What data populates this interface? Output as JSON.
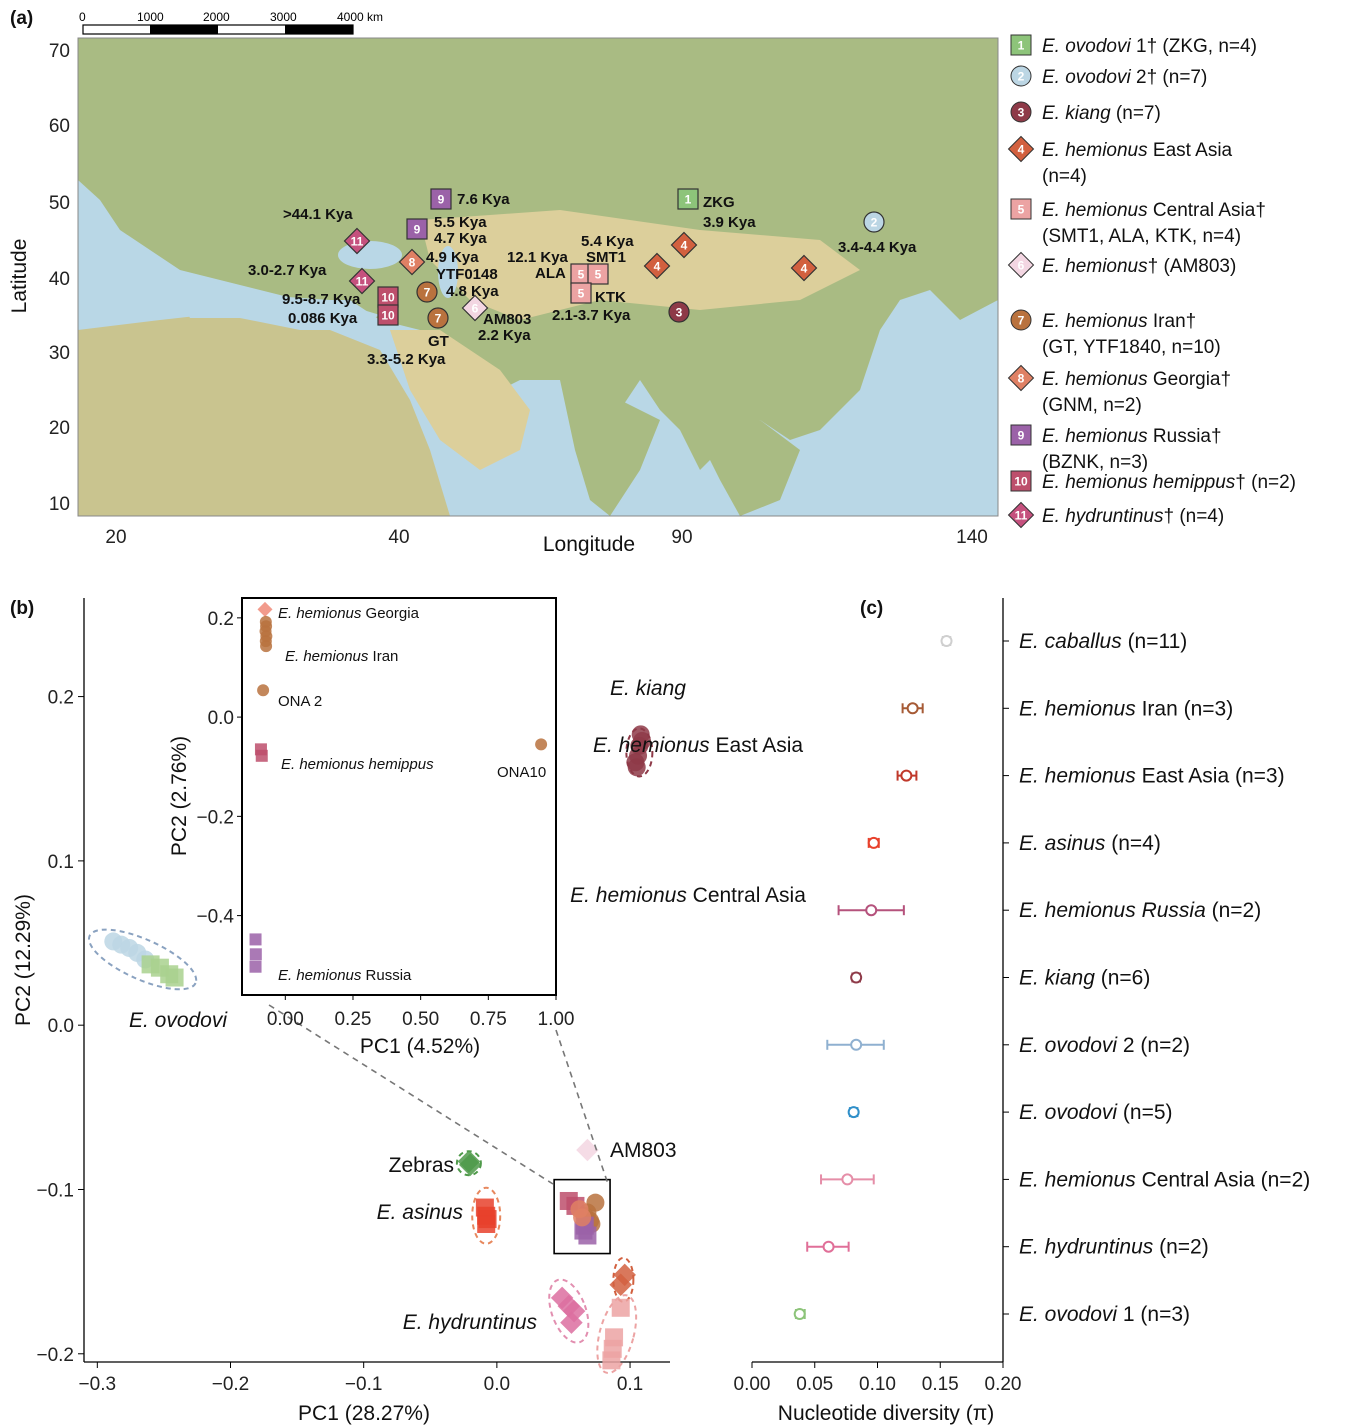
{
  "panels": {
    "a": "(a)",
    "b": "(b)",
    "c": "(c)"
  },
  "scale_bar": {
    "ticks": [
      "0",
      "1000",
      "2000",
      "3000",
      "4000 km"
    ]
  },
  "map": {
    "xlabel": "Longitude",
    "ylabel": "Latitude",
    "xticks": [
      "20",
      "40",
      "90",
      "140"
    ],
    "yticks": [
      "70",
      "60",
      "50",
      "40",
      "30",
      "20",
      "10"
    ],
    "sites": [
      {
        "num": "1",
        "shape": "square",
        "color": "#8dc47a",
        "labels": [
          "ZKG",
          "3.9 Kya"
        ]
      },
      {
        "num": "2",
        "shape": "circle",
        "color": "#bcd6e4",
        "labels": [
          "3.4-4.4 Kya"
        ]
      },
      {
        "num": "3",
        "shape": "circle",
        "color": "#8e3a48",
        "labels": []
      },
      {
        "num": "4",
        "shape": "diamond",
        "color": "#d2603f",
        "labels": []
      },
      {
        "num": "4",
        "shape": "diamond",
        "color": "#d2603f",
        "labels": []
      },
      {
        "num": "4",
        "shape": "diamond",
        "color": "#d2603f",
        "labels": []
      },
      {
        "num": "5",
        "shape": "square",
        "color": "#eca3a3",
        "labels": [
          "ALA"
        ]
      },
      {
        "num": "5",
        "shape": "square",
        "color": "#eca3a3",
        "labels": [
          "5.4 Kya",
          "SMT1"
        ]
      },
      {
        "num": "5",
        "shape": "square",
        "color": "#eca3a3",
        "labels": [
          "KTK",
          "2.1-3.7 Kya"
        ]
      },
      {
        "num": "6",
        "shape": "diamond",
        "color": "#f3d6e2",
        "labels": [
          "AM803",
          "2.2 Kya"
        ]
      },
      {
        "num": "7",
        "shape": "circle",
        "color": "#b9723e",
        "labels": [
          "YTF0148",
          "4.8 Kya"
        ]
      },
      {
        "num": "7",
        "shape": "circle",
        "color": "#b9723e",
        "labels": [
          "GT",
          "3.3-5.2 Kya"
        ]
      },
      {
        "num": "8",
        "shape": "diamond",
        "color": "#df8064",
        "labels": [
          "4.9 Kya"
        ]
      },
      {
        "num": "9",
        "shape": "square",
        "color": "#9b62a8",
        "labels": [
          "7.6 Kya"
        ]
      },
      {
        "num": "9",
        "shape": "square",
        "color": "#9b62a8",
        "labels": [
          "5.5 Kya",
          "4.7 Kya"
        ]
      },
      {
        "num": "10",
        "shape": "square",
        "color": "#bd4f6c",
        "labels": [
          "9.5-8.7 Kya"
        ]
      },
      {
        "num": "10",
        "shape": "square",
        "color": "#bd4f6c",
        "labels": [
          "0.086 Kya"
        ]
      },
      {
        "num": "11",
        "shape": "diamond",
        "color": "#c5517e",
        "labels": [
          ">44.1 Kya"
        ]
      },
      {
        "num": "11",
        "shape": "diamond",
        "color": "#c5517e",
        "labels": [
          "3.0-2.7 Kya"
        ]
      },
      {
        "num": "",
        "shape": "none",
        "color": "#111111",
        "labels": [
          "12.1 Kya"
        ]
      }
    ]
  },
  "legend": [
    {
      "num": "1",
      "shape": "square",
      "color": "#8dc47a",
      "italic": "E. ovodovi",
      "rest": " 1† (ZKG, n=4)",
      "line2": ""
    },
    {
      "num": "2",
      "shape": "circle",
      "color": "#bcd6e4",
      "italic": "E. ovodovi",
      "rest": " 2† (n=7)",
      "line2": ""
    },
    {
      "num": "3",
      "shape": "circle",
      "color": "#8e3a48",
      "italic": "E. kiang",
      "rest": " (n=7)",
      "line2": ""
    },
    {
      "num": "4",
      "shape": "diamond",
      "color": "#d2603f",
      "italic": "E. hemionus",
      "rest": " East Asia",
      "line2": "(n=4)"
    },
    {
      "num": "5",
      "shape": "square",
      "color": "#eca3a3",
      "italic": "E. hemionus",
      "rest": " Central Asia†",
      "line2": "(SMT1, ALA, KTK, n=4)"
    },
    {
      "num": "6",
      "shape": "diamond",
      "color": "#f3d6e2",
      "italic": "E. hemionus",
      "rest": "† (AM803)",
      "line2": ""
    },
    {
      "num": "7",
      "shape": "circle",
      "color": "#b9723e",
      "italic": "E. hemionus",
      "rest": " Iran†",
      "line2": "(GT, YTF1840, n=10)"
    },
    {
      "num": "8",
      "shape": "diamond",
      "color": "#df8064",
      "italic": "E. hemionus",
      "rest": " Georgia†",
      "line2": "(GNM, n=2)"
    },
    {
      "num": "9",
      "shape": "square",
      "color": "#9b62a8",
      "italic": "E. hemionus",
      "rest": " Russia†",
      "line2": "(BZNK, n=3)"
    },
    {
      "num": "10",
      "shape": "square",
      "color": "#bd4f6c",
      "italic": "E. hemionus hemippus",
      "rest": "† (n=2)",
      "line2": ""
    },
    {
      "num": "11",
      "shape": "diamond",
      "color": "#c5517e",
      "italic": "E. hydruntinus",
      "rest": "† (n=4)",
      "line2": ""
    }
  ],
  "chart_data": [
    {
      "type": "scatter",
      "id": "pca-main",
      "xlabel": "PC1 (28.27%)",
      "ylabel": "PC2 (12.29%)",
      "xlim": [
        -0.31,
        0.13
      ],
      "ylim": [
        -0.205,
        0.26
      ],
      "xticks": [
        "-0.3",
        "-0.2",
        "-0.1",
        "0.0",
        "0.1"
      ],
      "xtickvals": [
        -0.3,
        -0.2,
        -0.1,
        0.0,
        0.1
      ],
      "yticks": [
        "0.2",
        "0.1",
        "0.0",
        "-0.1",
        "-0.2"
      ],
      "ytickvals": [
        0.2,
        0.1,
        0.0,
        -0.1,
        -0.2
      ],
      "groups": [
        {
          "label_italic": "E. kiang",
          "label_rest": "",
          "color": "#8e3a48",
          "shape": "circle",
          "points": [
            [
              0.108,
              0.177
            ],
            [
              0.107,
              0.17
            ],
            [
              0.106,
              0.164
            ],
            [
              0.105,
              0.157
            ],
            [
              0.109,
              0.173
            ],
            [
              0.104,
              0.16
            ]
          ]
        },
        {
          "label_italic": "E. hemionus",
          "label_rest": " East Asia",
          "color": "#d2603f",
          "shape": "diamond",
          "points": [
            [
              0.096,
              -0.152
            ],
            [
              0.093,
              -0.158
            ]
          ]
        },
        {
          "label_italic": "E. hemionus",
          "label_rest": " Central Asia",
          "color": "#eca3a3",
          "shape": "square",
          "points": [
            [
              0.093,
              -0.172
            ],
            [
              0.088,
              -0.19
            ],
            [
              0.087,
              -0.197
            ],
            [
              0.086,
              -0.204
            ]
          ]
        },
        {
          "label_italic": "E. ovodovi",
          "label_rest": "",
          "color": "#bcd6e4",
          "shape": "circle",
          "points": [
            [
              -0.288,
              0.051
            ],
            [
              -0.282,
              0.049
            ],
            [
              -0.276,
              0.047
            ],
            [
              -0.27,
              0.044
            ],
            [
              -0.264,
              0.04
            ]
          ]
        },
        {
          "label_italic": "",
          "label_rest": "",
          "color": "#a9d18e",
          "shape": "square",
          "points": [
            [
              -0.26,
              0.037
            ],
            [
              -0.253,
              0.035
            ],
            [
              -0.246,
              0.031
            ],
            [
              -0.242,
              0.029
            ]
          ]
        },
        {
          "label_italic": "",
          "label_rest": "Zebras",
          "color": "#4f9a4a",
          "shape": "diamond",
          "points": [
            [
              -0.021,
              -0.083
            ],
            [
              -0.02,
              -0.085
            ]
          ]
        },
        {
          "label_italic": "",
          "label_rest": "AM803",
          "color": "#f3d6e2",
          "shape": "diamond",
          "points": [
            [
              0.068,
              -0.076
            ]
          ]
        },
        {
          "label_italic": "E. asinus",
          "label_rest": "",
          "color": "#e8412c",
          "shape": "square",
          "points": [
            [
              -0.009,
              -0.111
            ],
            [
              -0.008,
              -0.116
            ],
            [
              -0.008,
              -0.121
            ],
            [
              -0.007,
              -0.118
            ]
          ]
        },
        {
          "label_italic": "",
          "label_rest": "",
          "color": "#b9723e",
          "shape": "circle",
          "points": [
            [
              0.074,
              -0.108
            ],
            [
              0.068,
              -0.114
            ],
            [
              0.07,
              -0.119
            ],
            [
              0.066,
              -0.116
            ],
            [
              0.071,
              -0.121
            ]
          ]
        },
        {
          "label_italic": "",
          "label_rest": "",
          "color": "#bd4f6c",
          "shape": "square",
          "points": [
            [
              0.054,
              -0.107
            ],
            [
              0.059,
              -0.11
            ]
          ]
        },
        {
          "label_italic": "",
          "label_rest": "",
          "color": "#9b62a8",
          "shape": "square",
          "points": [
            [
              0.065,
              -0.125
            ],
            [
              0.068,
              -0.128
            ],
            [
              0.066,
              -0.122
            ]
          ]
        },
        {
          "label_italic": "",
          "label_rest": "",
          "color": "#df8064",
          "shape": "circle",
          "points": [
            [
              0.062,
              -0.112
            ],
            [
              0.064,
              -0.117
            ]
          ]
        },
        {
          "label_italic": "E. hydruntinus",
          "label_rest": "",
          "color": "#dc6fa0",
          "shape": "diamond",
          "points": [
            [
              0.049,
              -0.166
            ],
            [
              0.054,
              -0.171
            ],
            [
              0.058,
              -0.174
            ],
            [
              0.056,
              -0.181
            ]
          ]
        }
      ]
    },
    {
      "type": "scatter",
      "id": "pca-inset",
      "xlabel": "PC1 (4.52%)",
      "ylabel": "PC2 (2.76%)",
      "xlim": [
        -0.16,
        1.0
      ],
      "ylim": [
        -0.56,
        0.24
      ],
      "xticks": [
        "0.00",
        "0.25",
        "0.50",
        "0.75",
        "1.00"
      ],
      "xtickvals": [
        0.0,
        0.25,
        0.5,
        0.75,
        1.0
      ],
      "yticks": [
        "0.2",
        "0.0",
        "-0.2",
        "-0.4"
      ],
      "ytickvals": [
        0.2,
        0.0,
        -0.2,
        -0.4
      ],
      "groups": [
        {
          "label": "Georgia",
          "label_italic": "E. hemionus",
          "color": "#f08a78",
          "shape": "diamond",
          "points": [
            [
              -0.075,
              0.217
            ]
          ]
        },
        {
          "label": "Iran",
          "label_italic": "E. hemionus",
          "color": "#b9723e",
          "shape": "circle",
          "points": [
            [
              -0.072,
              0.192
            ],
            [
              -0.071,
              0.183
            ],
            [
              -0.073,
              0.173
            ],
            [
              -0.07,
              0.163
            ],
            [
              -0.072,
              0.153
            ],
            [
              -0.071,
              0.143
            ]
          ]
        },
        {
          "label": "ONA 2",
          "label_italic": "",
          "color": "#b9723e",
          "shape": "circle",
          "points": [
            [
              -0.082,
              0.054
            ]
          ]
        },
        {
          "label": "",
          "label_italic": "E. hemionus hemippus",
          "color": "#bd4f6c",
          "shape": "square",
          "points": [
            [
              -0.09,
              -0.065
            ],
            [
              -0.087,
              -0.078
            ]
          ]
        },
        {
          "label": "ONA10",
          "label_italic": "",
          "color": "#b9723e",
          "shape": "circle",
          "points": [
            [
              0.945,
              -0.055
            ]
          ]
        },
        {
          "label": "Russia",
          "label_italic": "E. hemionus",
          "color": "#9b62a8",
          "shape": "square",
          "points": [
            [
              -0.11,
              -0.448
            ],
            [
              -0.109,
              -0.478
            ],
            [
              -0.11,
              -0.503
            ]
          ]
        }
      ]
    },
    {
      "type": "dot-errorbar",
      "id": "nucleotide-diversity",
      "xlabel": "Nucleotide diversity (π)",
      "xlim": [
        0.0,
        0.2
      ],
      "xticks": [
        "0.00",
        "0.05",
        "0.10",
        "0.15",
        "0.20"
      ],
      "xtickvals": [
        0.0,
        0.05,
        0.1,
        0.15,
        0.2
      ],
      "rows": [
        {
          "italic": "E. caballus",
          "rest": " (n=11)",
          "value": 0.155,
          "low": 0.152,
          "high": 0.158,
          "color": "#cfcfcf"
        },
        {
          "italic": "E. hemionus",
          "rest": " Iran (n=3)",
          "value": 0.128,
          "low": 0.12,
          "high": 0.136,
          "color": "#a65a35"
        },
        {
          "italic": "E. hemionus",
          "rest": " East Asia (n=3)",
          "value": 0.123,
          "low": 0.116,
          "high": 0.131,
          "color": "#c0392b"
        },
        {
          "italic": "E. asinus",
          "rest": " (n=4)",
          "value": 0.097,
          "low": 0.093,
          "high": 0.101,
          "color": "#e8412c"
        },
        {
          "italic": "E. hemionus Russia",
          "rest": " (n=2)",
          "value": 0.095,
          "low": 0.069,
          "high": 0.121,
          "color": "#b5527c"
        },
        {
          "italic": "E. kiang",
          "rest": " (n=6)",
          "value": 0.083,
          "low": 0.08,
          "high": 0.086,
          "color": "#8e3a48"
        },
        {
          "italic": "E. ovodovi",
          "rest": " 2 (n=2)",
          "value": 0.083,
          "low": 0.06,
          "high": 0.105,
          "color": "#8fb0d0"
        },
        {
          "italic": "E. ovodovi",
          "rest": " (n=5)",
          "value": 0.081,
          "low": 0.078,
          "high": 0.084,
          "color": "#2f8fc9"
        },
        {
          "italic": "E. hemionus",
          "rest": " Central Asia (n=2)",
          "value": 0.076,
          "low": 0.055,
          "high": 0.097,
          "color": "#e58ea8"
        },
        {
          "italic": "E. hydruntinus",
          "rest": " (n=2)",
          "value": 0.061,
          "low": 0.044,
          "high": 0.077,
          "color": "#e06f98"
        },
        {
          "italic": "E. ovodovi",
          "rest": " 1 (n=3)",
          "value": 0.038,
          "low": 0.035,
          "high": 0.042,
          "color": "#8dc47a"
        }
      ]
    }
  ]
}
